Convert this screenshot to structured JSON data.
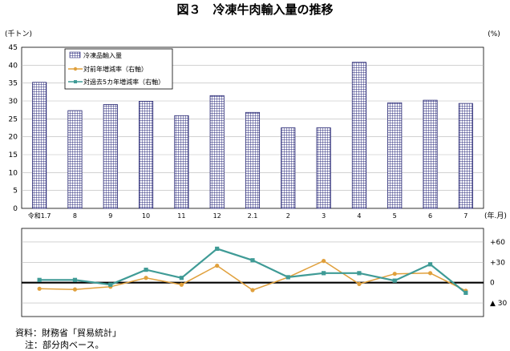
{
  "chart_data": {
    "type": "bar",
    "title": "図３　冷凍牛肉輸入量の推移",
    "y_left_unit": "(千トン)",
    "y_right_unit": "(%)",
    "x_unit": "(年.月)",
    "categories": [
      "令和1.7",
      "8",
      "9",
      "10",
      "11",
      "12",
      "2.1",
      "2",
      "3",
      "4",
      "5",
      "6",
      "7"
    ],
    "bar_series": {
      "name": "冷凍品輸入量",
      "values": [
        35.2,
        27.3,
        29.0,
        29.9,
        25.9,
        31.5,
        26.8,
        22.5,
        22.5,
        40.8,
        29.5,
        30.2,
        29.3
      ],
      "colors": [
        "#9a9ad6",
        "#9a9ad6",
        "#9a9ad6",
        "#9a9ad6",
        "#9a9ad6",
        "#9a9ad6",
        "#9a9ad6",
        "#9a9ad6",
        "#9a9ad6",
        "#9a9ad6",
        "#9a9ad6",
        "#a0a0dc",
        "#a6a6e6"
      ]
    },
    "ylim_left": [
      0,
      45
    ],
    "yticks_left": [
      "0",
      "5",
      "10",
      "15",
      "20",
      "25",
      "30",
      "35",
      "40",
      "45"
    ],
    "line_series": [
      {
        "name": "対前年増減率（右軸）",
        "color": "#e0a03c",
        "values": [
          -9,
          -10,
          -6,
          7,
          -3,
          25,
          -11,
          8,
          32,
          -2,
          13,
          14,
          -12
        ]
      },
      {
        "name": "対過去5カ年増減率（右軸）",
        "color": "#3f9b96",
        "values": [
          4,
          4,
          -3,
          19,
          7,
          50,
          33,
          8,
          14,
          14,
          3,
          27,
          -15
        ]
      }
    ],
    "ylim_right": [
      -50,
      80
    ],
    "yticks_right": [
      {
        "value": 60,
        "label": "+60"
      },
      {
        "value": 30,
        "label": "+30"
      },
      {
        "value": 0,
        "label": "0"
      },
      {
        "value": -30,
        "label": "▲ 30"
      }
    ],
    "grid": true,
    "legend_position": "top-left"
  },
  "footer": {
    "source": "資料：財務省「貿易統計」",
    "note": "注：部分肉ベース。"
  }
}
